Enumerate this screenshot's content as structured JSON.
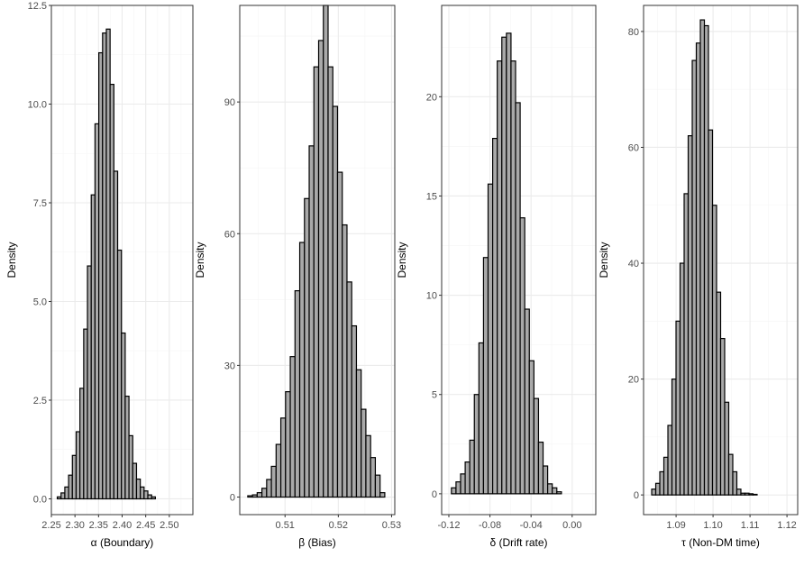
{
  "style": {
    "bar_fill": "#a9a9a9",
    "bar_stroke": "#000000",
    "panel_bg": "#ffffff",
    "panel_border": "#333333",
    "grid_major": "#ebebeb",
    "grid_minor": "#f5f5f5"
  },
  "chart_data": [
    {
      "type": "histogram",
      "xlabel": "α (Boundary)",
      "ylabel": "Density",
      "grid": true,
      "xlim": [
        2.25,
        2.55
      ],
      "ylim": [
        -0.4,
        12.5
      ],
      "xticks": [
        2.25,
        2.3,
        2.35,
        2.4,
        2.45,
        2.5
      ],
      "xtick_labels": [
        "2.25",
        "2.30",
        "2.35",
        "2.40",
        "2.45",
        "2.50"
      ],
      "yticks": [
        0,
        2.5,
        5,
        7.5,
        10,
        12.5
      ],
      "ytick_labels": [
        "0.0",
        "2.5",
        "5.0",
        "7.5",
        "10.0",
        "12.5"
      ],
      "bin_start": 2.2625,
      "bin_width": 0.008,
      "values": [
        0.05,
        0.15,
        0.3,
        0.6,
        1.1,
        1.7,
        2.8,
        4.3,
        5.9,
        7.7,
        9.5,
        11.3,
        11.8,
        11.9,
        10.5,
        8.3,
        6.3,
        4.2,
        2.6,
        1.6,
        0.9,
        0.5,
        0.3,
        0.2,
        0.1,
        0.05
      ]
    },
    {
      "type": "histogram",
      "xlabel": "β (Bias)",
      "ylabel": "Density",
      "grid": true,
      "xlim": [
        0.5015,
        0.5306
      ],
      "ylim": [
        -4,
        112
      ],
      "xticks": [
        0.51,
        0.52,
        0.53
      ],
      "xtick_labels": [
        "0.51",
        "0.52",
        "0.53"
      ],
      "yticks": [
        0,
        30,
        60,
        90
      ],
      "ytick_labels": [
        "0",
        "30",
        "60",
        "90"
      ],
      "bin_start": 0.503,
      "bin_width": 0.000887,
      "values": [
        0.3,
        0.5,
        1.0,
        2.0,
        4.0,
        7.0,
        12.0,
        18.0,
        24.0,
        32.0,
        47.0,
        58.0,
        68.0,
        80.0,
        98.0,
        104.0,
        112.0,
        98.0,
        89.0,
        74.0,
        62.0,
        49.0,
        39.0,
        29.0,
        20.0,
        14.0,
        9.0,
        5.0,
        1.0
      ]
    },
    {
      "type": "histogram",
      "xlabel": "δ (Drift rate)",
      "ylabel": "Density",
      "grid": true,
      "xlim": [
        -0.127,
        0.023
      ],
      "ylim": [
        -1.05,
        24.6
      ],
      "xticks": [
        -0.12,
        -0.08,
        -0.04,
        0.0
      ],
      "xtick_labels": [
        "-0.12",
        "-0.08",
        "-0.04",
        "0.00"
      ],
      "yticks": [
        0,
        5,
        10,
        15,
        20
      ],
      "ytick_labels": [
        "0",
        "5",
        "10",
        "15",
        "20"
      ],
      "bin_start": -0.1175,
      "bin_width": 0.00446,
      "values": [
        0.3,
        0.6,
        1.0,
        1.6,
        2.7,
        5.0,
        7.6,
        11.9,
        15.6,
        17.9,
        21.8,
        23.0,
        23.2,
        21.8,
        19.7,
        13.9,
        9.3,
        6.7,
        4.8,
        2.6,
        1.4,
        0.5,
        0.3,
        0.1
      ]
    },
    {
      "type": "histogram",
      "xlabel": "τ (Non-DM time)",
      "ylabel": "Density",
      "grid": true,
      "xlim": [
        1.0812,
        1.1229
      ],
      "ylim": [
        -3.4,
        84.5
      ],
      "xticks": [
        1.09,
        1.1,
        1.11,
        1.12
      ],
      "xtick_labels": [
        "1.09",
        "1.10",
        "1.11",
        "1.12"
      ],
      "yticks": [
        0,
        20,
        40,
        60,
        80
      ],
      "ytick_labels": [
        "0",
        "20",
        "40",
        "60",
        "80"
      ],
      "bin_start": 1.0834,
      "bin_width": 0.001097,
      "values": [
        1.0,
        2.0,
        4.0,
        6.5,
        12.0,
        20.0,
        30.0,
        40.0,
        52.0,
        62.0,
        75.0,
        78.0,
        82.0,
        81.0,
        63.0,
        50.0,
        35.0,
        27.0,
        16.0,
        7.0,
        4.0,
        1.0,
        0.3,
        0.3,
        0.2,
        0.1
      ]
    }
  ]
}
